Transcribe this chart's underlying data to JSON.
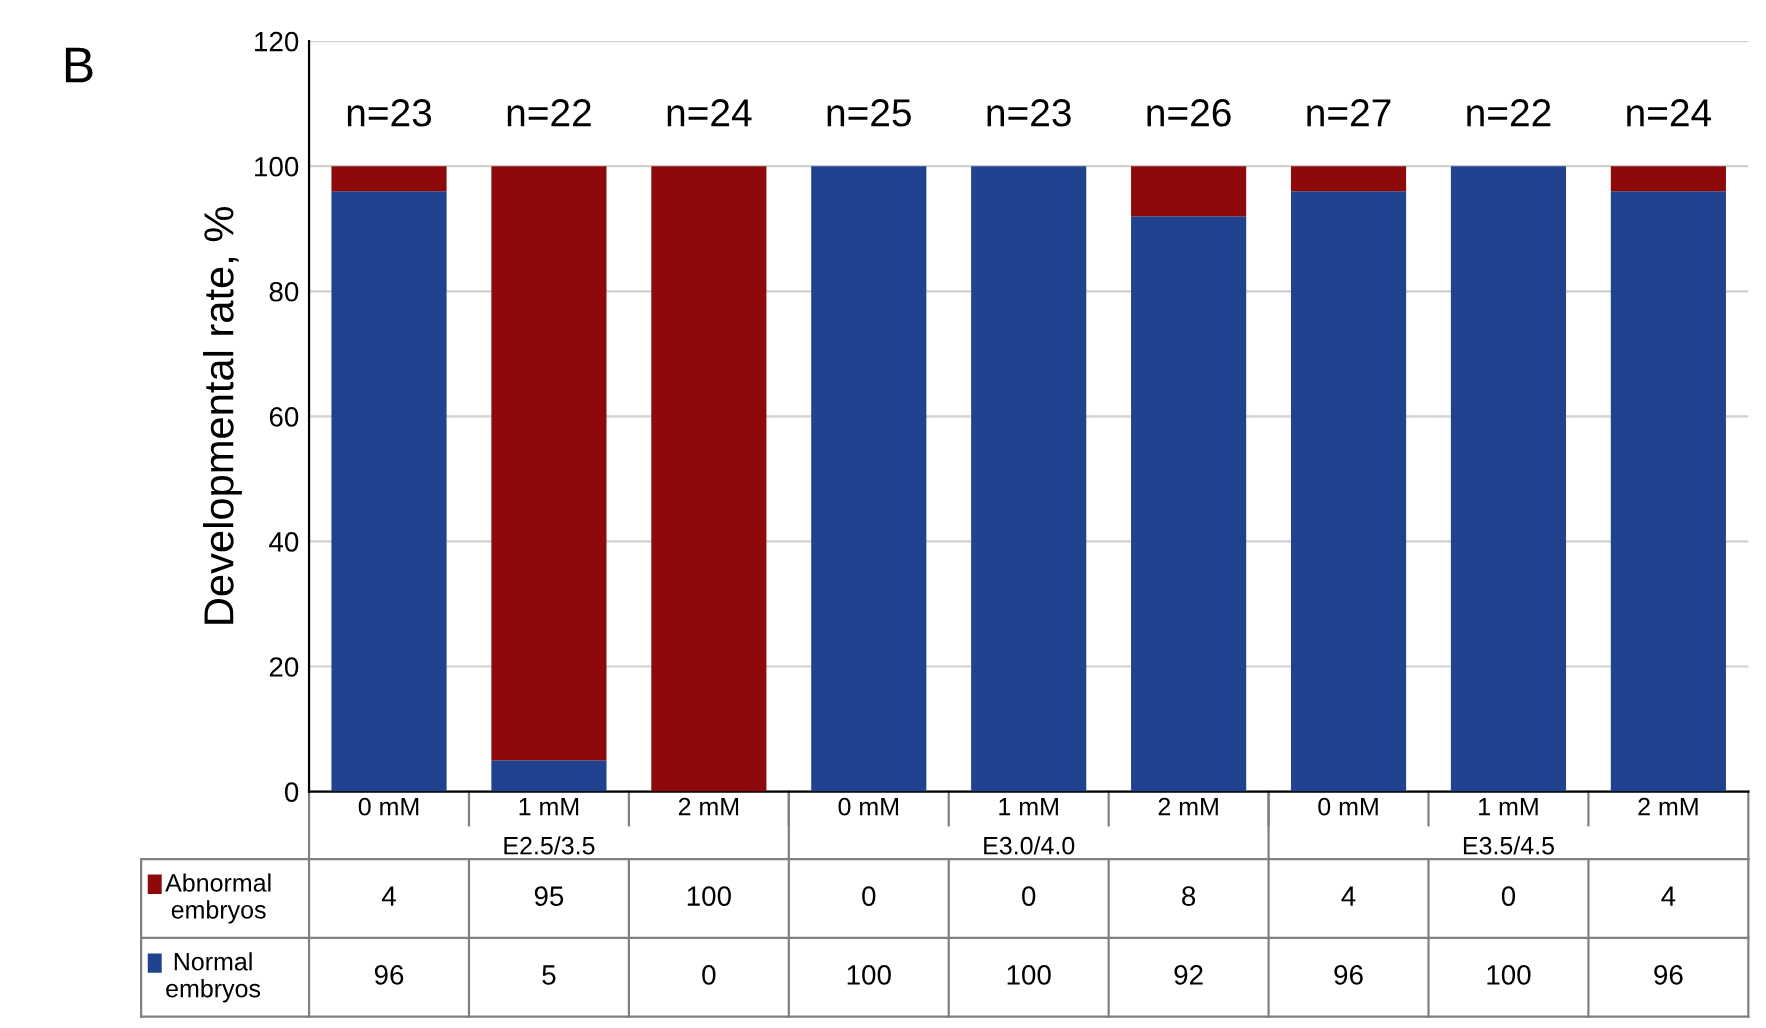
{
  "chart_data": {
    "type": "bar",
    "stacked": true,
    "ylabel": "Developmental rate, %",
    "categories": [
      "0 mM",
      "1 mM",
      "2 mM",
      "0 mM",
      "1 mM",
      "2 mM",
      "0 mM",
      "1 mM",
      "2 mM"
    ],
    "series": [
      {
        "name": "Normal embryos",
        "color": "#21428f",
        "values": [
          96,
          5,
          0,
          100,
          100,
          92,
          96,
          100,
          96
        ]
      },
      {
        "name": "Abnormal embryos",
        "color": "#8e0a0a",
        "values": [
          4,
          95,
          100,
          0,
          0,
          8,
          4,
          0,
          4
        ]
      }
    ],
    "ylim": [
      0,
      120
    ],
    "yticks": [
      0,
      20,
      40,
      60,
      80,
      100,
      120
    ],
    "grid": "y",
    "data_labels": true,
    "legend": "bottom left",
    "annotations": [
      "B",
      "n=23",
      "n=22",
      "n=24",
      "n=25",
      "n=23",
      "n=26",
      "n=27",
      "n=22",
      "n=24",
      "E2.5/3.5",
      "E3.0/4.0",
      "E3.5/4.5"
    ]
  }
}
